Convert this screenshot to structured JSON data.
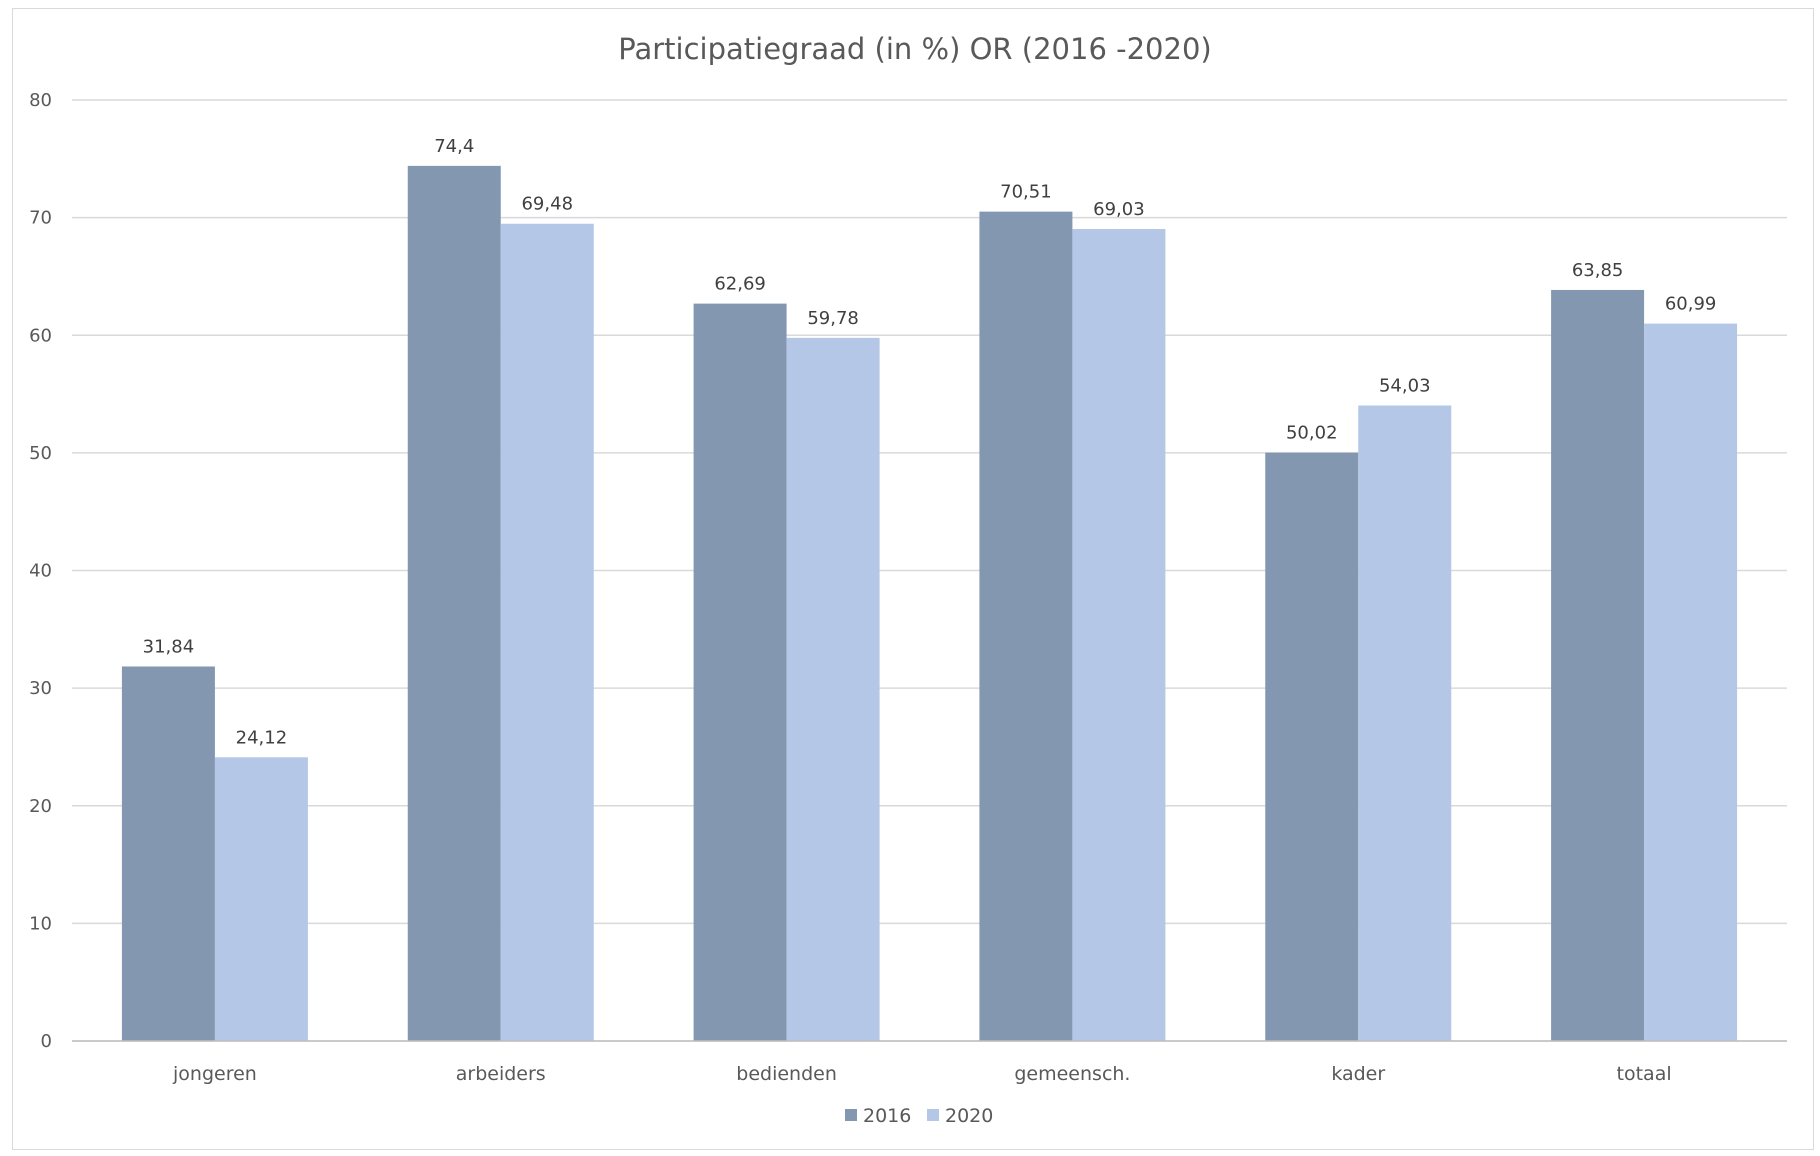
{
  "chart_data": {
    "type": "bar",
    "title": "Participatiegraad (in %) OR (2016 -2020)",
    "categories": [
      "jongeren",
      "arbeiders",
      "bedienden",
      "gemeensch.",
      "kader",
      "totaal"
    ],
    "series": [
      {
        "name": "2016",
        "values": [
          31.84,
          74.4,
          62.69,
          70.51,
          50.02,
          63.85
        ],
        "labels": [
          "31,84",
          "74,4",
          "62,69",
          "70,51",
          "50,02",
          "63,85"
        ],
        "color": "#8497b0"
      },
      {
        "name": "2020",
        "values": [
          24.12,
          69.48,
          59.78,
          69.03,
          54.03,
          60.99
        ],
        "labels": [
          "24,12",
          "69,48",
          "59,78",
          "69,03",
          "54,03",
          "60,99"
        ],
        "color": "#b4c7e7"
      }
    ],
    "ylim": [
      0,
      80
    ],
    "yticks": [
      "0",
      "10",
      "20",
      "30",
      "40",
      "50",
      "60",
      "70",
      "80"
    ],
    "grid": true,
    "gridline_color": "#d9d9d9",
    "legend_position": "bottom"
  }
}
